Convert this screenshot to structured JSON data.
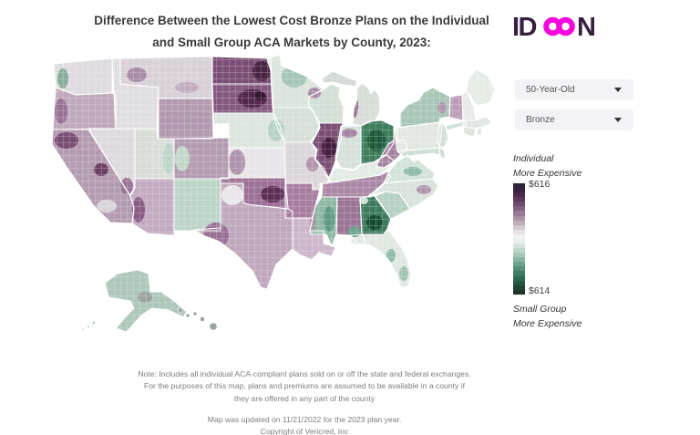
{
  "title": "Difference Between the Lowest Cost Bronze Plans on the Individual and Small Group ACA Markets by County, 2023:",
  "logo": {
    "brand": "IDEON",
    "left_letters": "ID",
    "right_letter": "N",
    "dark_color": "#3a2040",
    "magenta_color": "#f707dd"
  },
  "controls": {
    "age": {
      "value": "50-Year-Old"
    },
    "plan": {
      "value": "Bronze"
    },
    "icons": {
      "dropdown_caret": "chevron-down"
    }
  },
  "legend": {
    "top_line1": "Individual",
    "top_line2": "More Expensive",
    "max_value": "$616",
    "min_value": "$614",
    "bottom_line1": "Small Group",
    "bottom_line2": "More Expensive",
    "stops": [
      "#2b2531",
      "#3a2340",
      "#4c2a4d",
      "#5e395d",
      "#6f4a6e",
      "#836180",
      "#977a93",
      "#ab94a7",
      "#bfafbb",
      "#d3c9d0",
      "#e6e2e4",
      "#f2f1f1",
      "#e8eeeb",
      "#d6e4dd",
      "#bfd8cd",
      "#a4c8b9",
      "#88b6a3",
      "#6ca38d",
      "#539078",
      "#3e7d64",
      "#2e6a51",
      "#245740",
      "#1f4431",
      "#1e3528"
    ]
  },
  "chart_data": {
    "type": "choropleth",
    "title": "Difference Between the Lowest Cost Bronze Plans on the Individual and Small Group ACA Markets by County, 2023",
    "geography": "United States counties (incl. Alaska and Hawaii)",
    "colorscale": {
      "max_label": "$616",
      "max_meaning": "Individual More Expensive (purple)",
      "min_label": "$614",
      "min_meaning": "Small Group More Expensive (green)",
      "midpoint": "white (no difference)"
    },
    "controls_selected": {
      "age": "50-Year-Old",
      "metal_level": "Bronze"
    },
    "regions_individual_more_expensive": [
      "North Dakota",
      "South Dakota",
      "central Illinois",
      "Oklahoma",
      "west Texas",
      "northern California",
      "coastal Oregon",
      "Wyoming",
      "Colorado",
      "Tennessee",
      "Arkansas",
      "West Virginia",
      "Vermont",
      "western Mississippi",
      "Alabama",
      "Louisiana",
      "southeast Arizona border areas",
      "northwest Wisconsin",
      "western Michigan shoreline",
      "eastern North Carolina patches"
    ],
    "regions_small_group_more_expensive": [
      "Ohio (dark green core)",
      "Georgia (dark green core)",
      "eastern Mississippi",
      "upstate New York",
      "Alaska",
      "northern Minnesota",
      "New Mexico",
      "South Carolina",
      "Virginia patches",
      "eastern Utah",
      "western Colorado",
      "central Florida patches"
    ],
    "neutral_regions": [
      "Kansas",
      "Nevada",
      "Idaho",
      "Montana",
      "Maine",
      "New Hampshire",
      "Pennsylvania",
      "Kentucky",
      "Iowa",
      "Texas panhandle"
    ]
  },
  "map": {
    "region_fills": {
      "WA": "#dedbe1",
      "OR": "#bfa9bb",
      "CA": "#b49cb0",
      "NV": "#dedade",
      "ID": "#e0dee2",
      "MT": "#d8d1d8",
      "WY": "#b299af",
      "UT": "#d9ddd8",
      "CO": "#b49bb1",
      "AZ": "#c3abc0",
      "NM": "#bcd5c8",
      "ND": "#7b4f75",
      "SD": "#855a80",
      "NE": "#dde5df",
      "KS": "#e7e5e7",
      "OK": "#9c7197",
      "TX": "#c0a8bd",
      "MN": "#dce4dd",
      "IA": "#d6e0d8",
      "MO": "#dcd6da",
      "AR": "#a77ea2",
      "LA": "#cdb7ca",
      "WI": "#d3e0d6",
      "IL": "#7c4f76",
      "IN": "#d6e1d9",
      "OH": "#3f7d5e",
      "MI": "#d8ddd9",
      "MIUP": "#d4d9d5",
      "KY": "#e3ebe5",
      "TN": "#ab89a6",
      "MS": "#8fb9a4",
      "AL": "#9a7495",
      "GA": "#3d7a5c",
      "FL": "#e1e8e3",
      "SC": "#b6d1c2",
      "NC": "#d9e3db",
      "VA": "#d3e3d8",
      "WV": "#a583a0",
      "MD": "#cfdfd4",
      "DE": "#cbdcd1",
      "NJ": "#d5e1d8",
      "PA": "#e3e7e3",
      "NY": "#a9c7b7",
      "LI": "#cfe0d6",
      "VT": "#bd9cba",
      "NH": "#e7e9e7",
      "ME": "#e7ebe7",
      "MA": "#dfe5e1",
      "CT": "#dce4de",
      "RI": "#dce4de",
      "AK": "#adc7bb",
      "HI": "#9aa49f",
      "WA-coast": "#88ae9a",
      "OR-coast": "#9a7295",
      "MT-west": "#a98ca7",
      "MT-east": "#c2aebf",
      "CA-north": "#7a4e74",
      "CA-sierra": "#6d4166",
      "CA-central-coast": "#3e8268",
      "CA-south": "#d9d3da",
      "NV-south": "#9c7699",
      "UT-east": "#bdd6c9",
      "CO-west": "#c3d8cb",
      "AZ-west": "#8a5d85",
      "ND-east": "#4a2444",
      "SD-core": "#55294f",
      "SD-dark": "#33152e",
      "NE-east": "#b7d2c4",
      "KS-west": "#b094ac",
      "OK-core": "#5e2f56",
      "TX-west": "#9a7295",
      "TX-panhandle": "#e9e7e9",
      "MN-north": "#a6c6b6",
      "WI-nw": "#a98ca7",
      "MI-west": "#9a7295",
      "IL-core": "#451f40",
      "IN-north": "#a783a3",
      "OH-core": "#1d5b3c",
      "MO-east": "#b295ae",
      "MS-east": "#5f9a82",
      "MS-west": "#a98ca5",
      "AL-se": "#6aa28b",
      "GA-core": "#174d33",
      "GA-nw": "#cfe0d5",
      "FL-central": "#8fbcaa",
      "FL-south": "#9fc4b3",
      "NC-east": "#b295ae",
      "VA-south": "#8fbcaa",
      "NY-east": "#b295ae",
      "AK-south": "#9aa49f"
    }
  },
  "notes": {
    "line1": "Note: Includes all individual ACA-compliant plans sold on or off the state and federal exchanges.",
    "line2": "For the purposes of this map, plans and premiums are assumed to be available in a county if",
    "line3": "they are offered in any part of the county",
    "updated": "Map was updated on 11/21/2022 for the 2023 plan year.",
    "copyright": "Copyright of Vericred, Inc"
  }
}
